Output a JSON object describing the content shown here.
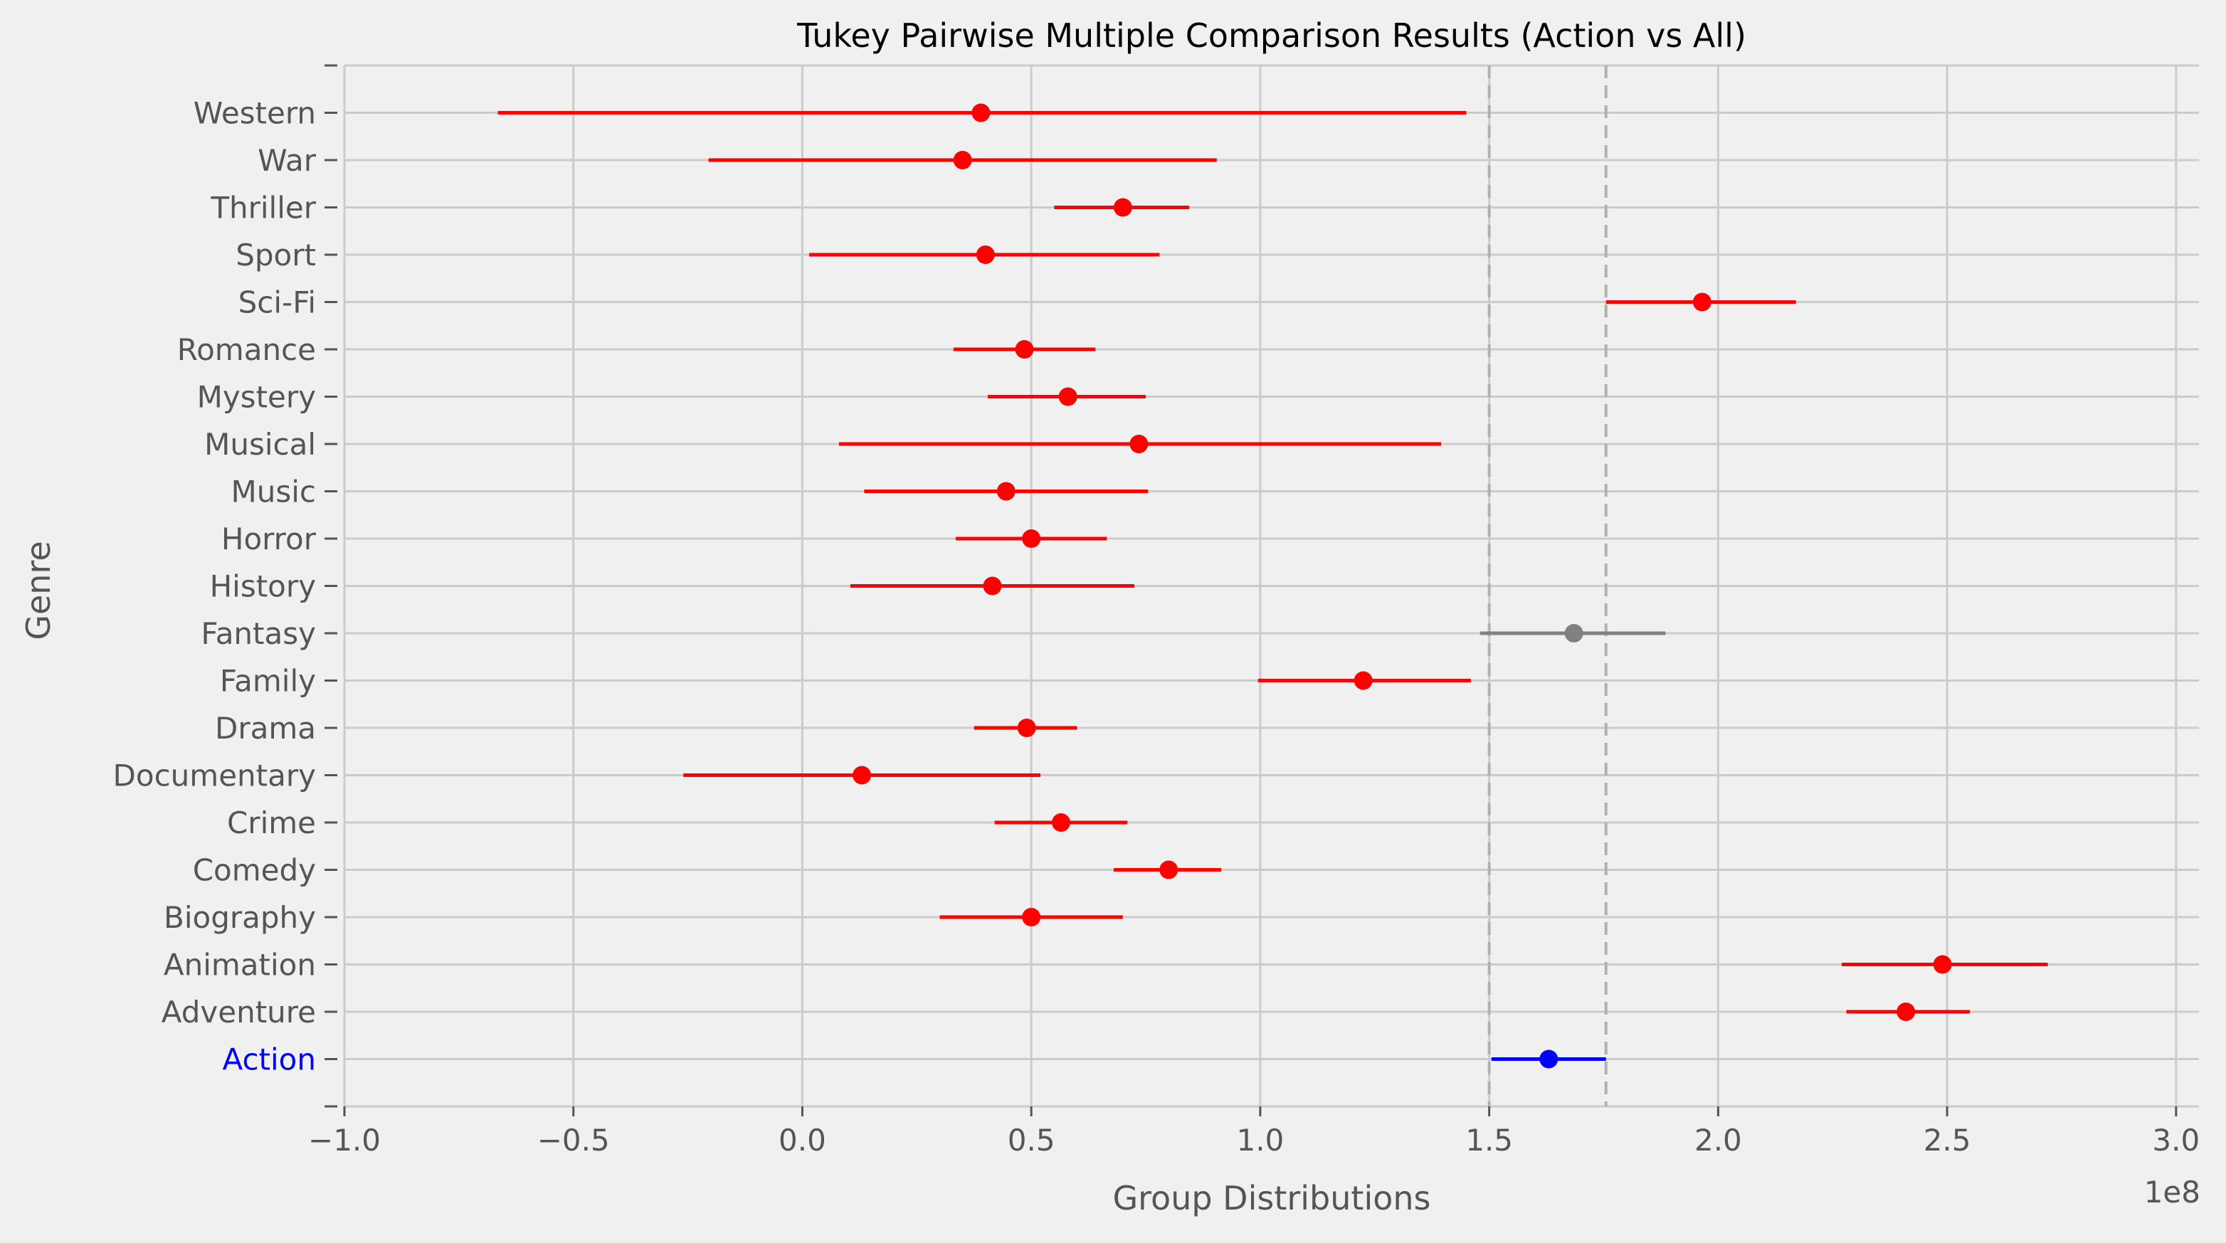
{
  "chart_data": {
    "type": "errorbar",
    "title": "Tukey Pairwise Multiple Comparison Results (Action vs All)",
    "xlabel": "Group Distributions",
    "ylabel": "Genre",
    "x_multiplier_label": "1e8",
    "xlim": [
      -1.0,
      3.05
    ],
    "xticks": [
      -1.0,
      -0.5,
      0.0,
      0.5,
      1.0,
      1.5,
      2.0,
      2.5,
      3.0
    ],
    "xtick_labels": [
      "−1.0",
      "−0.5",
      "0.0",
      "0.5",
      "1.0",
      "1.5",
      "2.0",
      "2.5",
      "3.0"
    ],
    "grid": true,
    "reference_lines": [
      1.5,
      1.755
    ],
    "colors": {
      "significant": "#ff0000",
      "not_significant": "#808080",
      "reference": "#0000ff",
      "grid": "#cbcbcb",
      "refline": "#b0b0b0",
      "text": "#555555",
      "background": "#f0f0f0"
    },
    "groups": [
      {
        "name": "Action",
        "mean": 1.63,
        "low": 1.505,
        "high": 1.755,
        "status": "reference"
      },
      {
        "name": "Adventure",
        "mean": 2.41,
        "low": 2.28,
        "high": 2.55,
        "status": "significant"
      },
      {
        "name": "Animation",
        "mean": 2.49,
        "low": 2.27,
        "high": 2.72,
        "status": "significant"
      },
      {
        "name": "Biography",
        "mean": 0.5,
        "low": 0.3,
        "high": 0.7,
        "status": "significant"
      },
      {
        "name": "Comedy",
        "mean": 0.8,
        "low": 0.68,
        "high": 0.915,
        "status": "significant"
      },
      {
        "name": "Crime",
        "mean": 0.565,
        "low": 0.42,
        "high": 0.71,
        "status": "significant"
      },
      {
        "name": "Documentary",
        "mean": 0.13,
        "low": -0.26,
        "high": 0.52,
        "status": "significant"
      },
      {
        "name": "Drama",
        "mean": 0.49,
        "low": 0.375,
        "high": 0.6,
        "status": "significant"
      },
      {
        "name": "Family",
        "mean": 1.225,
        "low": 0.995,
        "high": 1.46,
        "status": "significant"
      },
      {
        "name": "Fantasy",
        "mean": 1.685,
        "low": 1.48,
        "high": 1.885,
        "status": "not_significant"
      },
      {
        "name": "History",
        "mean": 0.415,
        "low": 0.105,
        "high": 0.725,
        "status": "significant"
      },
      {
        "name": "Horror",
        "mean": 0.5,
        "low": 0.335,
        "high": 0.665,
        "status": "significant"
      },
      {
        "name": "Music",
        "mean": 0.445,
        "low": 0.135,
        "high": 0.755,
        "status": "significant"
      },
      {
        "name": "Musical",
        "mean": 0.735,
        "low": 0.08,
        "high": 1.395,
        "status": "significant"
      },
      {
        "name": "Mystery",
        "mean": 0.58,
        "low": 0.405,
        "high": 0.75,
        "status": "significant"
      },
      {
        "name": "Romance",
        "mean": 0.485,
        "low": 0.33,
        "high": 0.64,
        "status": "significant"
      },
      {
        "name": "Sci-Fi",
        "mean": 1.965,
        "low": 1.755,
        "high": 2.17,
        "status": "significant"
      },
      {
        "name": "Sport",
        "mean": 0.4,
        "low": 0.015,
        "high": 0.78,
        "status": "significant"
      },
      {
        "name": "Thriller",
        "mean": 0.7,
        "low": 0.55,
        "high": 0.845,
        "status": "significant"
      },
      {
        "name": "War",
        "mean": 0.35,
        "low": -0.205,
        "high": 0.905,
        "status": "significant"
      },
      {
        "name": "Western",
        "mean": 0.39,
        "low": -0.665,
        "high": 1.45,
        "status": "significant"
      }
    ]
  }
}
